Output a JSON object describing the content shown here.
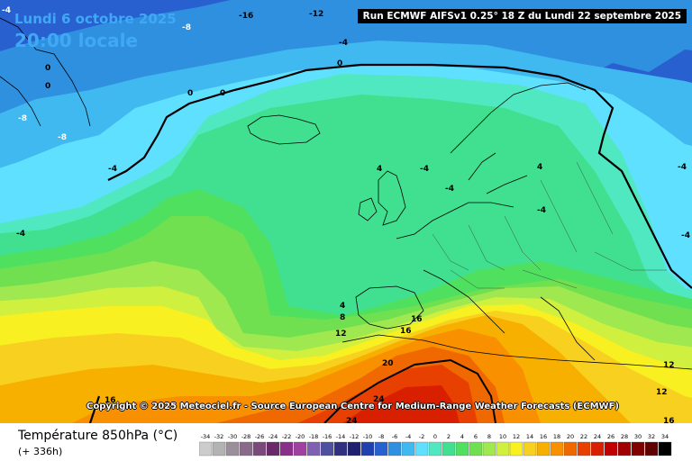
{
  "header": {
    "date": "Lundi 6 octobre 2025",
    "time": "20:00 locale",
    "run": "Run ECMWF AIFSv1 0.25° 18 Z du Lundi 22 septembre 2025"
  },
  "footer": {
    "copyright": "Copyright © 2025 Meteociel.fr - Source European Centre for Medium-Range Weather Forecasts (ECMWF)",
    "parameter": "Température 850hPa (°C)",
    "lead": "(+ 336h)"
  },
  "map_labels": [
    "-16",
    "-12",
    "-8",
    "-4",
    "0",
    "-4",
    "0",
    "0",
    "0",
    "0",
    "-8",
    "-4",
    "-8",
    "-4",
    "4",
    "-4",
    "-4",
    "4",
    "-4",
    "4",
    "8",
    "12",
    "16",
    "16",
    "20",
    "24",
    "24",
    "16",
    "12",
    "12",
    "16",
    "-4",
    "-4"
  ],
  "legend": {
    "scale_labels": [
      "-34",
      "-32",
      "-30",
      "-28",
      "-26",
      "-24",
      "-22",
      "-20",
      "-18",
      "-16",
      "-14",
      "-12",
      "-10",
      "-8",
      "-6",
      "-4",
      "-2",
      "0",
      "2",
      "4",
      "6",
      "8",
      "10",
      "12",
      "14",
      "16",
      "18",
      "20",
      "22",
      "24",
      "26",
      "28",
      "30",
      "32",
      "34"
    ],
    "colors": [
      "#cccccc",
      "#b3b3b3",
      "#9a8f9a",
      "#8a6a8a",
      "#7a4a7a",
      "#6a2a6a",
      "#8a2f8a",
      "#a040a0",
      "#8060b0",
      "#5050a0",
      "#303080",
      "#202070",
      "#2040b0",
      "#2860d0",
      "#3090e0",
      "#40b8f0",
      "#60e0ff",
      "#50e8c0",
      "#40e090",
      "#50e060",
      "#70e050",
      "#a0e850",
      "#d0f040",
      "#f8f020",
      "#f8d020",
      "#f8b000",
      "#f89000",
      "#f06800",
      "#e84000",
      "#d82000",
      "#c00000",
      "#a00000",
      "#800000",
      "#600000",
      "#000000"
    ]
  }
}
